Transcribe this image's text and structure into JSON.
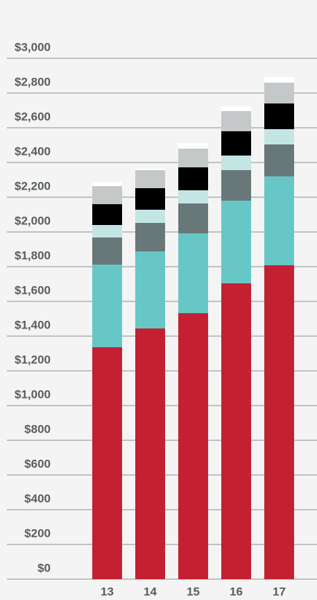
{
  "chart_data": {
    "type": "stacked_bar",
    "categories": [
      "13",
      "14",
      "15",
      "16",
      "17"
    ],
    "series": [
      {
        "color": "#c32032",
        "values": [
          1336,
          1444,
          1532,
          1704,
          1808
        ]
      },
      {
        "color": "#66c7c6",
        "values": [
          476,
          444,
          460,
          476,
          512
        ]
      },
      {
        "color": "#687777",
        "values": [
          156,
          164,
          172,
          176,
          184
        ]
      },
      {
        "color": "#c3e6e5",
        "values": [
          72,
          76,
          76,
          84,
          88
        ]
      },
      {
        "color": "#000000",
        "values": [
          120,
          124,
          132,
          140,
          148
        ]
      },
      {
        "color": "#c5c8c9",
        "values": [
          104,
          104,
          108,
          116,
          120
        ]
      },
      {
        "color": "#ffffff",
        "values": [
          24,
          8,
          32,
          28,
          32
        ]
      }
    ],
    "ylim": [
      0,
      3000
    ],
    "yticks": [
      {
        "value": 0,
        "label": "$0"
      },
      {
        "value": 200,
        "label": "$200"
      },
      {
        "value": 400,
        "label": "$400"
      },
      {
        "value": 600,
        "label": "$600"
      },
      {
        "value": 800,
        "label": "$800"
      },
      {
        "value": 1000,
        "label": "$1,000"
      },
      {
        "value": 1200,
        "label": "$1,200"
      },
      {
        "value": 1400,
        "label": "$1,400"
      },
      {
        "value": 1600,
        "label": "$1,600"
      },
      {
        "value": 1800,
        "label": "$1,800"
      },
      {
        "value": 2000,
        "label": "$2,000"
      },
      {
        "value": 2200,
        "label": "$2,200"
      },
      {
        "value": 2400,
        "label": "$2,400"
      },
      {
        "value": 2600,
        "label": "$2,600"
      },
      {
        "value": 2800,
        "label": "$2,800"
      },
      {
        "value": 3000,
        "label": "$3,000"
      }
    ],
    "grid": true
  }
}
